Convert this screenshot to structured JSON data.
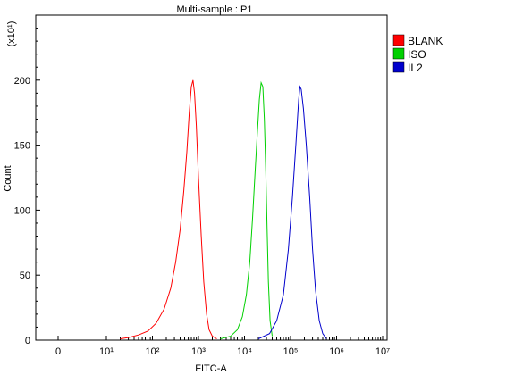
{
  "chart_data": {
    "type": "line",
    "title": "Multi-sample : P1",
    "xlabel": "FITC-A",
    "ylabel": "Count",
    "y_multiplier_label": "(x10¹)",
    "x_scale": "log",
    "x_ticks": [
      {
        "value": 0,
        "label": "0"
      },
      {
        "value": 10,
        "label": "10¹"
      },
      {
        "value": 100,
        "label": "10²"
      },
      {
        "value": 1000,
        "label": "10³"
      },
      {
        "value": 10000,
        "label": "10⁴"
      },
      {
        "value": 100000,
        "label": "10⁵"
      },
      {
        "value": 1000000,
        "label": "10⁶"
      },
      {
        "value": 10000000,
        "label": "10⁷"
      }
    ],
    "y_ticks": [
      0,
      50,
      100,
      150,
      200
    ],
    "ylim": [
      0,
      250
    ],
    "grid": false,
    "legend_position": "top-right",
    "series": [
      {
        "name": "BLANK",
        "color": "#ff0000",
        "x": [
          20,
          30,
          50,
          80,
          120,
          180,
          250,
          320,
          400,
          480,
          560,
          630,
          700,
          760,
          820,
          900,
          1000,
          1150,
          1300,
          1500,
          1700,
          2000,
          2500
        ],
        "y": [
          1,
          2,
          4,
          7,
          13,
          24,
          40,
          60,
          85,
          115,
          145,
          175,
          195,
          200,
          190,
          165,
          125,
          80,
          45,
          20,
          8,
          3,
          1
        ]
      },
      {
        "name": "ISO",
        "color": "#00d000",
        "x": [
          3000,
          5000,
          7000,
          9000,
          11000,
          13000,
          15000,
          17000,
          19000,
          21000,
          23000,
          25000,
          27000,
          29000,
          31000,
          33000,
          36000,
          40000
        ],
        "y": [
          1,
          3,
          8,
          18,
          35,
          60,
          95,
          130,
          160,
          185,
          198,
          195,
          170,
          130,
          85,
          45,
          15,
          3
        ]
      },
      {
        "name": "IL2",
        "color": "#0000cc",
        "x": [
          20000,
          35000,
          50000,
          70000,
          90000,
          110000,
          130000,
          150000,
          160000,
          170000,
          190000,
          220000,
          260000,
          300000,
          350000,
          420000,
          500000,
          600000
        ],
        "y": [
          1,
          5,
          15,
          35,
          70,
          110,
          150,
          185,
          195,
          193,
          178,
          150,
          110,
          70,
          38,
          15,
          5,
          1
        ]
      }
    ]
  }
}
